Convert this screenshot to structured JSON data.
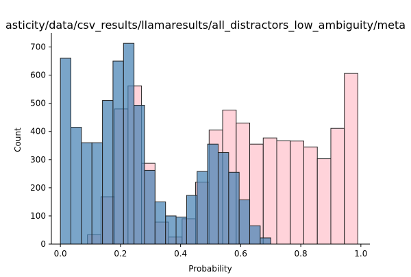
{
  "chart_data": {
    "type": "histogram",
    "title": "asticity/data/csv_results/llamaresults/all_distractors_low_ambiguity/meta",
    "xlabel": "Probability",
    "ylabel": "Count",
    "xlim": [
      -0.03,
      1.03
    ],
    "ylim": [
      0,
      750
    ],
    "xticks": [
      0.0,
      0.2,
      0.4,
      0.6,
      0.8,
      1.0
    ],
    "xtick_labels": [
      "0.0",
      "0.2",
      "0.4",
      "0.6",
      "0.8",
      "1.0"
    ],
    "yticks": [
      0,
      100,
      200,
      300,
      400,
      500,
      600,
      700
    ],
    "ytick_labels": [
      "0",
      "100",
      "200",
      "300",
      "400",
      "500",
      "600",
      "700"
    ],
    "grid": false,
    "series": [
      {
        "color": "#ffc0cb",
        "alpha": 0.7,
        "bins": [
          {
            "x0": 0.09,
            "x1": 0.135,
            "count": 33
          },
          {
            "x0": 0.135,
            "x1": 0.18,
            "count": 168
          },
          {
            "x0": 0.18,
            "x1": 0.225,
            "count": 480
          },
          {
            "x0": 0.225,
            "x1": 0.27,
            "count": 562
          },
          {
            "x0": 0.27,
            "x1": 0.315,
            "count": 287
          },
          {
            "x0": 0.315,
            "x1": 0.36,
            "count": 78
          },
          {
            "x0": 0.36,
            "x1": 0.405,
            "count": 25
          },
          {
            "x0": 0.405,
            "x1": 0.45,
            "count": 90
          },
          {
            "x0": 0.45,
            "x1": 0.495,
            "count": 220
          },
          {
            "x0": 0.495,
            "x1": 0.54,
            "count": 405
          },
          {
            "x0": 0.54,
            "x1": 0.585,
            "count": 476
          },
          {
            "x0": 0.585,
            "x1": 0.63,
            "count": 430
          },
          {
            "x0": 0.63,
            "x1": 0.675,
            "count": 355
          },
          {
            "x0": 0.675,
            "x1": 0.72,
            "count": 377
          },
          {
            "x0": 0.72,
            "x1": 0.765,
            "count": 367
          },
          {
            "x0": 0.765,
            "x1": 0.81,
            "count": 366
          },
          {
            "x0": 0.81,
            "x1": 0.855,
            "count": 345
          },
          {
            "x0": 0.855,
            "x1": 0.9,
            "count": 303
          },
          {
            "x0": 0.9,
            "x1": 0.945,
            "count": 411
          },
          {
            "x0": 0.945,
            "x1": 0.99,
            "count": 606
          }
        ]
      },
      {
        "color": "#4682b4",
        "alpha": 0.72,
        "bins": [
          {
            "x0": 0.0,
            "x1": 0.035,
            "count": 660
          },
          {
            "x0": 0.035,
            "x1": 0.07,
            "count": 415
          },
          {
            "x0": 0.07,
            "x1": 0.105,
            "count": 360
          },
          {
            "x0": 0.105,
            "x1": 0.14,
            "count": 360
          },
          {
            "x0": 0.14,
            "x1": 0.175,
            "count": 510
          },
          {
            "x0": 0.175,
            "x1": 0.21,
            "count": 650
          },
          {
            "x0": 0.21,
            "x1": 0.245,
            "count": 713
          },
          {
            "x0": 0.245,
            "x1": 0.28,
            "count": 493
          },
          {
            "x0": 0.28,
            "x1": 0.315,
            "count": 262
          },
          {
            "x0": 0.315,
            "x1": 0.35,
            "count": 150
          },
          {
            "x0": 0.35,
            "x1": 0.385,
            "count": 100
          },
          {
            "x0": 0.385,
            "x1": 0.42,
            "count": 96
          },
          {
            "x0": 0.42,
            "x1": 0.455,
            "count": 173
          },
          {
            "x0": 0.455,
            "x1": 0.49,
            "count": 258
          },
          {
            "x0": 0.49,
            "x1": 0.525,
            "count": 355
          },
          {
            "x0": 0.525,
            "x1": 0.56,
            "count": 325
          },
          {
            "x0": 0.56,
            "x1": 0.595,
            "count": 255
          },
          {
            "x0": 0.595,
            "x1": 0.63,
            "count": 157
          },
          {
            "x0": 0.63,
            "x1": 0.665,
            "count": 65
          },
          {
            "x0": 0.665,
            "x1": 0.7,
            "count": 22
          }
        ]
      }
    ]
  }
}
